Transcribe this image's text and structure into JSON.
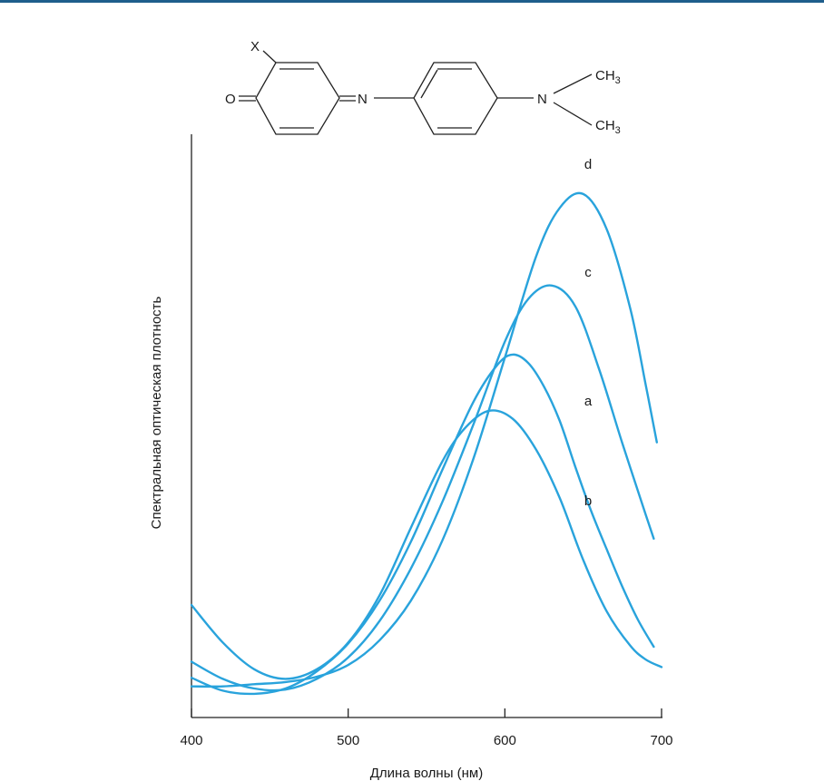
{
  "molecule": {
    "substituent": "X",
    "oxygen": "O",
    "imine_n": "N",
    "amine_n": "N",
    "methyl_top": "CH",
    "methyl_top_sub": "3",
    "methyl_bottom": "CH",
    "methyl_bottom_sub": "3"
  },
  "chart_data": {
    "type": "line",
    "xlabel": "Длина волны (нм)",
    "ylabel": "Спектральная оптическая плотность",
    "xlim": [
      400,
      700
    ],
    "ylim": [
      0,
      1
    ],
    "xticks": [
      400,
      500,
      600,
      700
    ],
    "yticks": [],
    "grid": false,
    "legend": "none",
    "curve_color": "#29a3dc",
    "series": [
      {
        "name": "a",
        "x": [
          400,
          420,
          440,
          460,
          480,
          500,
          520,
          540,
          560,
          580,
          595,
          605,
          615,
          625,
          635,
          645,
          655,
          665,
          675,
          685,
          695
        ],
        "y": [
          0.042,
          0.018,
          0.012,
          0.022,
          0.054,
          0.106,
          0.186,
          0.296,
          0.43,
          0.558,
          0.626,
          0.646,
          0.63,
          0.586,
          0.522,
          0.436,
          0.354,
          0.282,
          0.212,
          0.15,
          0.1
        ]
      },
      {
        "name": "b",
        "x": [
          400,
          420,
          440,
          460,
          480,
          500,
          520,
          540,
          560,
          575,
          590,
          605,
          620,
          635,
          650,
          665,
          680,
          690,
          700
        ],
        "y": [
          0.178,
          0.108,
          0.058,
          0.04,
          0.058,
          0.108,
          0.196,
          0.322,
          0.446,
          0.51,
          0.541,
          0.526,
          0.468,
          0.378,
          0.262,
          0.166,
          0.102,
          0.076,
          0.062
        ]
      },
      {
        "name": "c",
        "x": [
          400,
          420,
          440,
          460,
          480,
          500,
          520,
          540,
          560,
          580,
          600,
          615,
          630,
          645,
          660,
          675,
          690,
          695
        ],
        "y": [
          0.072,
          0.04,
          0.022,
          0.02,
          0.04,
          0.08,
          0.148,
          0.246,
          0.37,
          0.516,
          0.67,
          0.75,
          0.775,
          0.736,
          0.62,
          0.48,
          0.346,
          0.302
        ]
      },
      {
        "name": "d",
        "x": [
          400,
          420,
          440,
          460,
          480,
          500,
          520,
          540,
          560,
          580,
          600,
          620,
          635,
          650,
          665,
          680,
          690,
          697
        ],
        "y": [
          0.026,
          0.026,
          0.03,
          0.034,
          0.044,
          0.066,
          0.112,
          0.186,
          0.298,
          0.452,
          0.64,
          0.83,
          0.92,
          0.946,
          0.88,
          0.732,
          0.588,
          0.482
        ]
      }
    ]
  }
}
